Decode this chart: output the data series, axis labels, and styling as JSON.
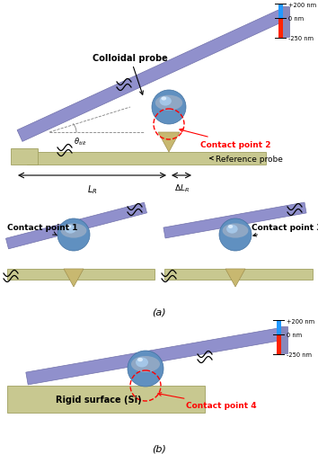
{
  "bg_color": "#ffffff",
  "cantilever_color": "#9090cc",
  "cantilever_edge": "#7070aa",
  "surface_color": "#c8c890",
  "surface_edge": "#a0a060",
  "tip_color": "#c8b870",
  "tip_edge": "#a09050",
  "ball_main": "#6090c0",
  "ball_light": "#a8ccee",
  "ball_highlight": "#e0f0ff",
  "ball_top_gray": "#b0b8c8",
  "contact_color": "red",
  "squiggle_color": "#000000",
  "nm_blue": "#2299ff",
  "nm_red": "#ff2200",
  "title_a": "(a)",
  "title_b": "(b)",
  "colloidal_probe_label": "Colloidal probe",
  "contact2_label": "Contact point 2",
  "contact1_label": "Contact point 1",
  "contact3_label": "Contact point 3",
  "contact4_label": "Contact point 4",
  "ref_probe_label": "Reference probe",
  "rigid_surface_label": "Rigid surface (Si)",
  "lr_label": "L_R",
  "dlr_label": "ΔL_R",
  "theta_label": "θ_tilt",
  "nm_labels": [
    "+200 nm",
    "0 nm",
    "-250 nm"
  ]
}
